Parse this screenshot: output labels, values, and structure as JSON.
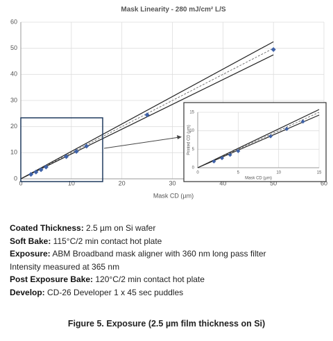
{
  "chart_data": [
    {
      "type": "scatter",
      "title": "Mask Linearity - 280 mJ/cm² L/S",
      "x_label": "Mask CD (µm)",
      "x": [
        2,
        3,
        4,
        5,
        9,
        11,
        13,
        25,
        50
      ],
      "values": [
        1.7,
        2.6,
        3.5,
        4.5,
        8.5,
        10.5,
        12.5,
        24.5,
        49.5
      ],
      "color": "#3f62a8",
      "xlim": [
        0,
        60
      ],
      "ylim": [
        0,
        60
      ],
      "xticks": [
        0,
        10,
        20,
        30,
        40,
        50,
        60
      ],
      "yticks": [
        0,
        10,
        20,
        30,
        40,
        50,
        60
      ],
      "grid": true,
      "reference_lines": [
        {
          "x": [
            0,
            50
          ],
          "values": [
            0,
            52.5
          ],
          "color": "#222222",
          "dashed": false
        },
        {
          "x": [
            0,
            50
          ],
          "values": [
            0,
            50
          ],
          "color": "#555555",
          "dashed": true
        },
        {
          "x": [
            0,
            50
          ],
          "values": [
            0,
            47.5
          ],
          "color": "#222222",
          "dashed": false
        }
      ]
    },
    {
      "type": "scatter",
      "x_label": "Mask CD (µm)",
      "y_label": "Printed CD (µm)",
      "x": [
        2,
        3,
        4,
        5,
        9,
        11,
        13
      ],
      "values": [
        1.7,
        2.6,
        3.5,
        4.5,
        8.5,
        10.5,
        12.5
      ],
      "color": "#3f62a8",
      "xlim": [
        0,
        15
      ],
      "ylim": [
        0,
        15
      ],
      "xticks": [
        0,
        5,
        10,
        15
      ],
      "yticks": [
        0,
        5,
        10,
        15
      ],
      "grid": true,
      "reference_lines": [
        {
          "x": [
            0,
            15
          ],
          "values": [
            0,
            15.75
          ],
          "color": "#222222",
          "dashed": false
        },
        {
          "x": [
            0,
            15
          ],
          "values": [
            0,
            15
          ],
          "color": "#555555",
          "dashed": true
        },
        {
          "x": [
            0,
            15
          ],
          "values": [
            0,
            14.25
          ],
          "color": "#222222",
          "dashed": false
        }
      ]
    }
  ],
  "specs": [
    {
      "label": "Coated Thickness:",
      "text": " 2.5 µm on Si wafer"
    },
    {
      "label": "Soft Bake:",
      "text": " 115°C/2 min contact hot plate"
    },
    {
      "label": "Exposure:",
      "text": " ABM Broadband mask aligner with 360 nm long pass filter"
    },
    {
      "text": "Intensity measured at 365 nm"
    },
    {
      "label": "Post Exposure Bake:",
      "text": " 120°C/2 min contact hot plate"
    },
    {
      "label": "Develop:",
      "text": " CD-26 Developer 1 x 45 sec puddles"
    }
  ],
  "caption": "Figure 5. Exposure (2.5 µm film thickness on Si)"
}
